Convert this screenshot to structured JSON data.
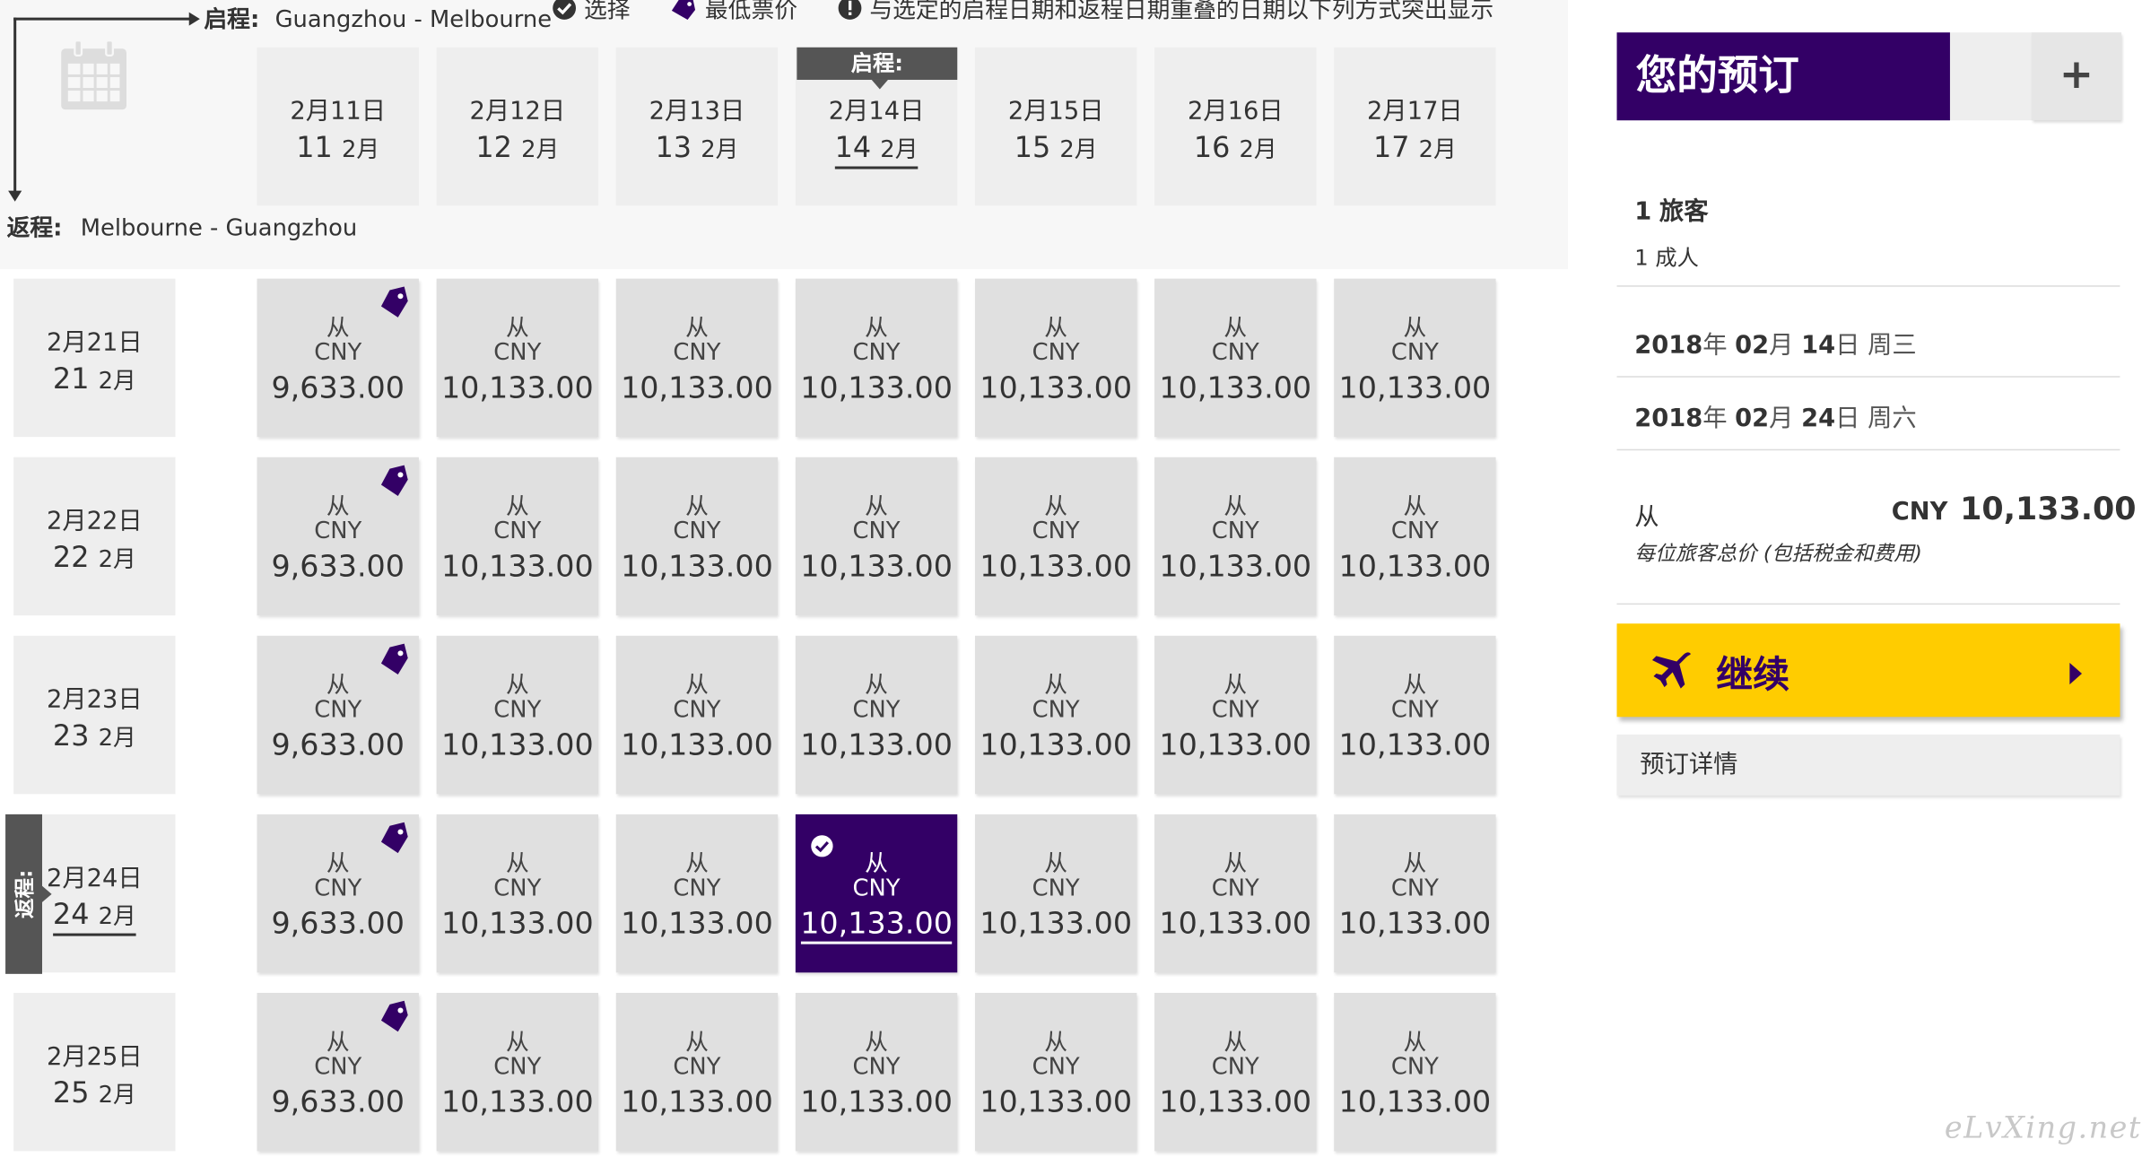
{
  "legend": {
    "select_label": "选择",
    "lowest_label": "最低票价",
    "overlap_note": "与选定的启程日期和返程日期重叠的日期以下列方式突出显示"
  },
  "route": {
    "outbound_label": "启程:",
    "outbound_value": "Guangzhou - Melbourne",
    "return_label": "返程:",
    "return_value": "Melbourne - Guangzhou"
  },
  "badges": {
    "outbound": "启程:",
    "return": "返程:"
  },
  "outbound_dates": [
    {
      "d1": "2月11日",
      "num": "11",
      "unit": "2月"
    },
    {
      "d1": "2月12日",
      "num": "12",
      "unit": "2月"
    },
    {
      "d1": "2月13日",
      "num": "13",
      "unit": "2月"
    },
    {
      "d1": "2月14日",
      "num": "14",
      "unit": "2月"
    },
    {
      "d1": "2月15日",
      "num": "15",
      "unit": "2月"
    },
    {
      "d1": "2月16日",
      "num": "16",
      "unit": "2月"
    },
    {
      "d1": "2月17日",
      "num": "17",
      "unit": "2月"
    }
  ],
  "return_dates": [
    {
      "d1": "2月21日",
      "num": "21",
      "unit": "2月"
    },
    {
      "d1": "2月22日",
      "num": "22",
      "unit": "2月"
    },
    {
      "d1": "2月23日",
      "num": "23",
      "unit": "2月"
    },
    {
      "d1": "2月24日",
      "num": "24",
      "unit": "2月"
    },
    {
      "d1": "2月25日",
      "num": "25",
      "unit": "2月"
    }
  ],
  "price_grid": {
    "from_label": "从",
    "currency": "CNY",
    "rows": [
      [
        "9,633.00",
        "10,133.00",
        "10,133.00",
        "10,133.00",
        "10,133.00",
        "10,133.00",
        "10,133.00"
      ],
      [
        "9,633.00",
        "10,133.00",
        "10,133.00",
        "10,133.00",
        "10,133.00",
        "10,133.00",
        "10,133.00"
      ],
      [
        "9,633.00",
        "10,133.00",
        "10,133.00",
        "10,133.00",
        "10,133.00",
        "10,133.00",
        "10,133.00"
      ],
      [
        "9,633.00",
        "10,133.00",
        "10,133.00",
        "10,133.00",
        "10,133.00",
        "10,133.00",
        "10,133.00"
      ],
      [
        "9,633.00",
        "10,133.00",
        "10,133.00",
        "10,133.00",
        "10,133.00",
        "10,133.00",
        "10,133.00"
      ]
    ],
    "lowest_fare_column": 0,
    "selected_outbound_index": 3,
    "selected_return_index": 3
  },
  "booking": {
    "title": "您的预订",
    "add_icon": "plus-icon",
    "passengers_count": "1",
    "passengers_label": "旅客",
    "adults": "1 成人",
    "outbound": {
      "year": "2018",
      "year_unit": "年",
      "month": "02",
      "month_unit": "月",
      "day": "14",
      "day_unit": "日",
      "weekday": "周三"
    },
    "return": {
      "year": "2018",
      "year_unit": "年",
      "month": "02",
      "month_unit": "月",
      "day": "24",
      "day_unit": "日",
      "weekday": "周六"
    },
    "from_label": "从",
    "currency": "CNY",
    "total": "10,133.00",
    "total_note": "每位旅客总价 (包括税金和费用)",
    "continue_label": "继续",
    "details_label": "预订详情"
  },
  "watermark": "eLvXing.net",
  "colors": {
    "brand_purple": "#330066",
    "cta_yellow": "#ffcc00",
    "cell_grey": "#e0e0e0",
    "header_grey": "#eeeeee"
  }
}
